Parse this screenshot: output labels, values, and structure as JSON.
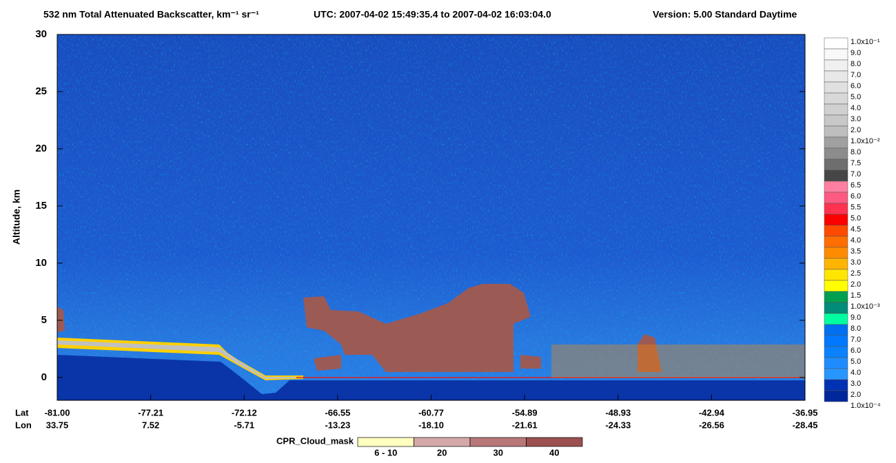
{
  "chart_data": {
    "type": "curtain",
    "title": "532 nm Total Attenuated Backscatter, km⁻¹ sr⁻¹",
    "time_range": "UTC:  2007-04-02 15:49:35.4  to  2007-04-02 16:03:04.0",
    "version": "Version: 5.00  Standard  Daytime",
    "ylabel": "Altitude, km",
    "ylim": [
      -2,
      30
    ],
    "yticks": [
      0,
      5,
      10,
      15,
      20,
      25,
      30
    ],
    "x_rows": [
      {
        "name": "Lat",
        "labels": [
          "-81.00",
          "-77.21",
          "-72.12",
          "-66.55",
          "-60.77",
          "-54.89",
          "-48.93",
          "-42.94",
          "-36.95"
        ]
      },
      {
        "name": "Lon",
        "labels": [
          "33.75",
          "7.52",
          "-5.71",
          "-13.23",
          "-18.10",
          "-21.61",
          "-24.33",
          "-26.56",
          "-28.45"
        ]
      }
    ],
    "colorbar": {
      "labels": [
        "1.0x10⁻¹",
        "9.0",
        "8.0",
        "7.0",
        "6.0",
        "5.0",
        "4.0",
        "3.0",
        "2.0",
        "1.0x10⁻²",
        "8.0",
        "7.5",
        "7.0",
        "6.5",
        "6.0",
        "5.5",
        "5.0",
        "4.5",
        "4.0",
        "3.5",
        "3.0",
        "2.5",
        "2.0",
        "1.5",
        "1.0x10⁻³",
        "9.0",
        "8.0",
        "7.0",
        "6.0",
        "5.0",
        "4.0",
        "3.0",
        "2.0",
        "1.0x10⁻⁴"
      ],
      "colors": [
        "#ffffff",
        "#f8f8f8",
        "#f0f0f0",
        "#e8e8e8",
        "#e0e0e0",
        "#d8d8d8",
        "#d0d0d0",
        "#c8c8c8",
        "#bebebe",
        "#a0a0a0",
        "#8c8c8c",
        "#6e6e6e",
        "#464646",
        "#ff80a0",
        "#ff5a82",
        "#ff3250",
        "#ff0000",
        "#ff4a00",
        "#ff6e00",
        "#ff8c00",
        "#ffb400",
        "#ffe600",
        "#ffff00",
        "#00a050",
        "#008c78",
        "#00ffa0",
        "#0070f0",
        "#0078ff",
        "#0a82ff",
        "#1e8cff",
        "#2896ff",
        "#0032b4",
        "#00289b"
      ]
    },
    "cpr_legend": {
      "title": "CPR_Cloud_mask",
      "labels": [
        "6 - 10",
        "20",
        "30",
        "40"
      ],
      "colors": [
        "#ffffc0",
        "#d4a8a8",
        "#b87878",
        "#9c5050"
      ]
    }
  }
}
